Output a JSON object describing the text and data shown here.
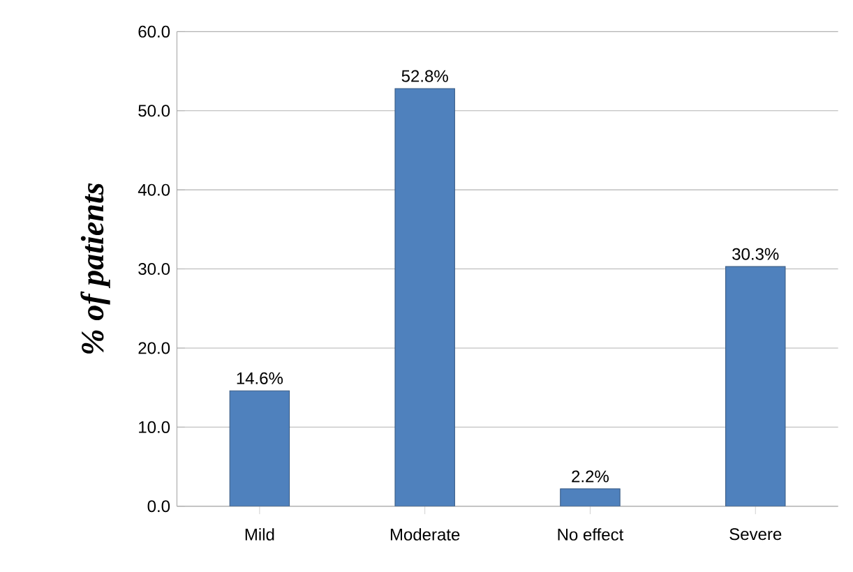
{
  "chart_data": {
    "type": "bar",
    "ylabel": "% of patients",
    "categories": [
      "Mild",
      "Moderate",
      "No effect",
      "Severe"
    ],
    "values": [
      14.6,
      52.8,
      2.2,
      30.3
    ],
    "value_labels": [
      "14.6%",
      "52.8%",
      "2.2%",
      "30.3%"
    ],
    "color": "#4f81bd",
    "ylim": [
      0,
      60
    ],
    "yticks": [
      {
        "value": 0,
        "label": "0.0"
      },
      {
        "value": 10,
        "label": "10.0"
      },
      {
        "value": 20,
        "label": "20.0"
      },
      {
        "value": 30,
        "label": "30.0"
      },
      {
        "value": 40,
        "label": "40.0"
      },
      {
        "value": 50,
        "label": "50.0"
      },
      {
        "value": 60,
        "label": "60.0"
      }
    ],
    "grid": "y"
  }
}
